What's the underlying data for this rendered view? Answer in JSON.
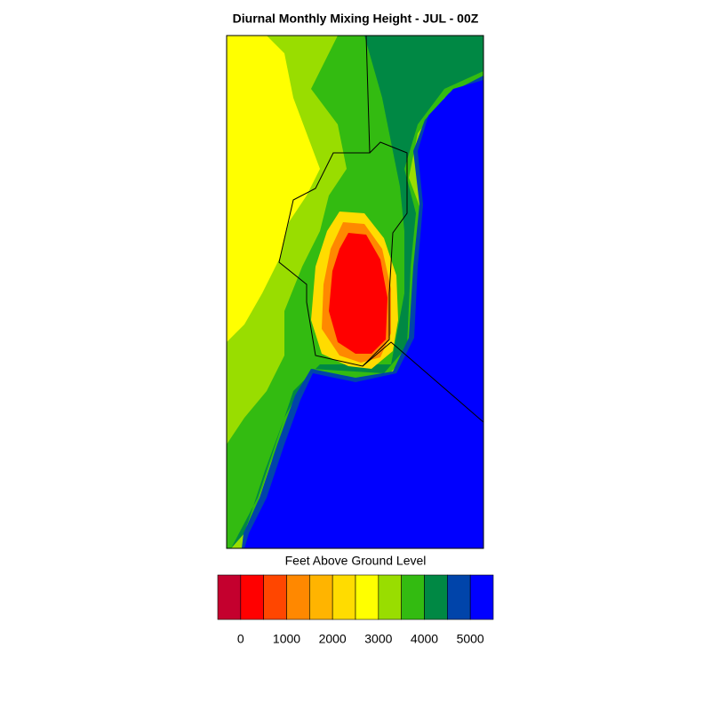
{
  "title": "Diurnal Monthly Mixing Height - JUL - 00Z",
  "colorbar": {
    "label": "Feet Above Ground Level",
    "colors": [
      "#c4002e",
      "#ff0000",
      "#ff4600",
      "#ff8800",
      "#ffb400",
      "#ffdc00",
      "#ffff00",
      "#99dd00",
      "#33bb11",
      "#008844",
      "#0044aa",
      "#0000ff"
    ],
    "lim": [
      -500,
      5500
    ],
    "ticks": [
      0,
      1000,
      2000,
      3000,
      4000,
      5000
    ]
  }
}
